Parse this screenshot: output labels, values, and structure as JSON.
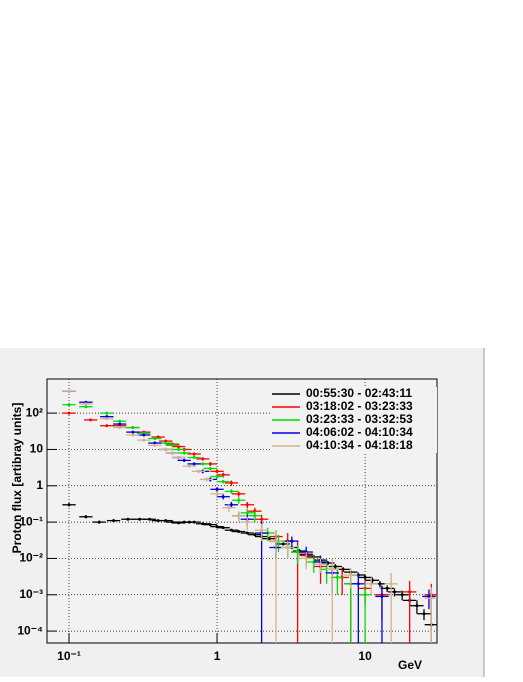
{
  "chart_data": {
    "type": "errorbar",
    "ylabel": "Proton flux [artibray units]",
    "xlabel": "GeV",
    "xlog": true,
    "ylog": true,
    "grid": true,
    "legend": "top right",
    "xlim": [
      0.071,
      30.6
    ],
    "ylim": [
      4.7e-05,
      870
    ],
    "xticks": [
      {
        "value": 0.1,
        "label": "10⁻¹"
      },
      1,
      10
    ],
    "yticks": [
      {
        "value": 0.0001,
        "label": "10⁻⁴"
      },
      {
        "value": 0.001,
        "label": "10⁻³"
      },
      {
        "value": 0.01,
        "label": "10⁻²"
      },
      {
        "value": 0.1,
        "label": "10⁻¹"
      },
      1,
      10,
      {
        "value": 100,
        "label": "10²"
      }
    ],
    "series": [
      {
        "name": "00:55:30 - 02:43:11",
        "color": "#000000",
        "x": [
          0.1,
          0.13,
          0.16,
          0.2,
          0.25,
          0.3,
          0.35,
          0.4,
          0.45,
          0.5,
          0.55,
          0.6,
          0.65,
          0.7,
          0.8,
          0.9,
          1.0,
          1.1,
          1.25,
          1.4,
          1.6,
          1.8,
          2.0,
          2.25,
          2.5,
          2.8,
          3.2,
          3.6,
          4.0,
          4.5,
          5.0,
          5.6,
          6.3,
          7.1,
          8.0,
          9.0,
          10,
          11.2,
          12.6,
          14.1,
          15.8,
          17.8,
          20,
          22.4,
          25,
          28
        ],
        "values": [
          0.3,
          0.14,
          0.1,
          0.11,
          0.12,
          0.12,
          0.12,
          0.11,
          0.11,
          0.1,
          0.095,
          0.1,
          0.1,
          0.1,
          0.09,
          0.085,
          0.075,
          0.07,
          0.06,
          0.055,
          0.05,
          0.045,
          0.04,
          0.035,
          0.03,
          0.025,
          0.02,
          0.016,
          0.013,
          0.011,
          0.009,
          0.0075,
          0.006,
          0.005,
          0.0042,
          0.0035,
          0.003,
          0.0025,
          0.002,
          0.0015,
          0.0012,
          0.001,
          0.0007,
          0.0005,
          0.0003,
          0.00015
        ],
        "errors": [
          0.03,
          0.014,
          0.01,
          0.008,
          0.008,
          0.008,
          0.008,
          0.007,
          0.007,
          0.006,
          0.006,
          0.006,
          0.006,
          0.006,
          0.005,
          0.005,
          0.005,
          0.005,
          0.004,
          0.004,
          0.004,
          0.003,
          0.003,
          0.003,
          0.003,
          0.002,
          0.002,
          0.002,
          0.002,
          0.0015,
          0.0012,
          0.001,
          0.001,
          0.0008,
          0.0007,
          0.0006,
          0.0005,
          0.0005,
          0.0004,
          0.0003,
          0.0003,
          0.0003,
          0.0002,
          0.0002,
          0.0001,
          5e-05
        ]
      },
      {
        "name": "03:18:02 - 03:23:33",
        "color": "#ff0000",
        "x": [
          0.1,
          0.14,
          0.18,
          0.22,
          0.27,
          0.32,
          0.4,
          0.45,
          0.5,
          0.55,
          0.6,
          0.7,
          0.8,
          0.9,
          1.0,
          1.1,
          1.25,
          1.4,
          1.6,
          1.8,
          2.0,
          2.5,
          3.0,
          3.5,
          4.0,
          5.0,
          6.0,
          7.0,
          8.0,
          10,
          13,
          20,
          28
        ],
        "values": [
          100,
          65,
          45,
          45,
          40,
          30,
          22,
          17,
          14,
          12,
          10,
          7.5,
          5.5,
          4,
          2.5,
          2,
          1.2,
          0.6,
          0.3,
          0.2,
          0.12,
          0.04,
          0.03,
          0.015,
          0.012,
          0.006,
          0.005,
          0.003,
          0.002,
          0.0015,
          0.001,
          0.0012,
          0.001
        ],
        "errors": [
          5,
          4,
          3,
          3,
          3,
          2,
          2,
          1.5,
          1.2,
          1,
          1,
          0.8,
          0.6,
          0.5,
          0.3,
          0.3,
          0.2,
          0.1,
          0.06,
          0.05,
          0.04,
          0.02,
          0.02,
          0.015,
          0.006,
          0.004,
          0.003,
          0.002,
          0.002,
          0.001,
          0.0008,
          0.0012,
          0.001
        ]
      },
      {
        "name": "03:23:33 - 03:32:53",
        "color": "#00dd00",
        "x": [
          0.1,
          0.13,
          0.18,
          0.22,
          0.27,
          0.32,
          0.38,
          0.45,
          0.5,
          0.55,
          0.6,
          0.7,
          0.8,
          0.9,
          1.0,
          1.1,
          1.25,
          1.4,
          1.6,
          1.8,
          2.2,
          2.6,
          3.0,
          3.5,
          4.5,
          5.5,
          6.5,
          8.0,
          10
        ],
        "values": [
          170,
          150,
          100,
          60,
          40,
          28,
          20,
          15,
          13,
          10,
          8,
          6,
          4,
          3,
          1.8,
          1.3,
          0.7,
          0.4,
          0.18,
          0.15,
          0.05,
          0.03,
          0.02,
          0.015,
          0.008,
          0.005,
          0.003,
          0.002,
          0.001
        ],
        "errors": [
          10,
          8,
          6,
          4,
          3,
          2,
          1.5,
          1.2,
          1,
          0.8,
          0.7,
          0.5,
          0.4,
          0.3,
          0.2,
          0.15,
          0.1,
          0.08,
          0.05,
          0.05,
          0.02,
          0.015,
          0.01,
          0.008,
          0.004,
          0.003,
          0.002,
          0.002,
          0.001
        ]
      },
      {
        "name": "04:06:02 - 04:10:34",
        "color": "#0000dd",
        "x": [
          0.1,
          0.13,
          0.18,
          0.22,
          0.27,
          0.32,
          0.38,
          0.45,
          0.5,
          0.55,
          0.6,
          0.7,
          0.8,
          0.9,
          1.0,
          1.1,
          1.25,
          1.4,
          1.6,
          2.0,
          2.5,
          3.2,
          4.0,
          5.0,
          6.0,
          9.0,
          13,
          27
        ],
        "values": [
          400,
          200,
          80,
          50,
          30,
          25,
          15,
          10,
          8,
          6,
          5,
          4,
          2.5,
          1.5,
          0.8,
          0.5,
          0.3,
          0.15,
          0.12,
          0.05,
          0.02,
          0.03,
          0.015,
          0.008,
          0.004,
          0.002,
          0.0009,
          0.0009
        ],
        "errors": [
          20,
          10,
          5,
          3,
          2,
          2,
          1.2,
          1,
          0.8,
          0.6,
          0.5,
          0.4,
          0.3,
          0.2,
          0.12,
          0.08,
          0.06,
          0.04,
          0.04,
          0.05,
          0.01,
          0.01,
          0.006,
          0.004,
          0.003,
          0.002,
          0.0009,
          0.0005
        ]
      },
      {
        "name": "04:10:34 - 04:18:18",
        "color": "#d2b48c",
        "x": [
          0.1,
          0.13,
          0.18,
          0.22,
          0.27,
          0.32,
          0.38,
          0.45,
          0.5,
          0.55,
          0.65,
          0.75,
          0.85,
          1.0,
          1.2,
          1.4,
          1.6,
          2.0,
          2.5,
          3.0,
          4.0,
          5.0,
          6.0,
          8.0,
          11,
          15,
          28
        ],
        "values": [
          400,
          180,
          70,
          40,
          25,
          18,
          13,
          10,
          8,
          6,
          3.5,
          2.5,
          1.5,
          0.6,
          0.25,
          0.15,
          0.1,
          0.06,
          0.03,
          0.02,
          0.01,
          0.007,
          0.005,
          0.0035,
          0.002,
          0.002,
          0.0008
        ],
        "errors": [
          20,
          10,
          5,
          3,
          2,
          1.5,
          1.2,
          1,
          0.8,
          0.6,
          0.4,
          0.3,
          0.2,
          0.1,
          0.06,
          0.05,
          0.04,
          0.03,
          0.03,
          0.01,
          0.005,
          0.003,
          0.005,
          0.002,
          0.001,
          0.002,
          0.0008
        ]
      }
    ]
  }
}
